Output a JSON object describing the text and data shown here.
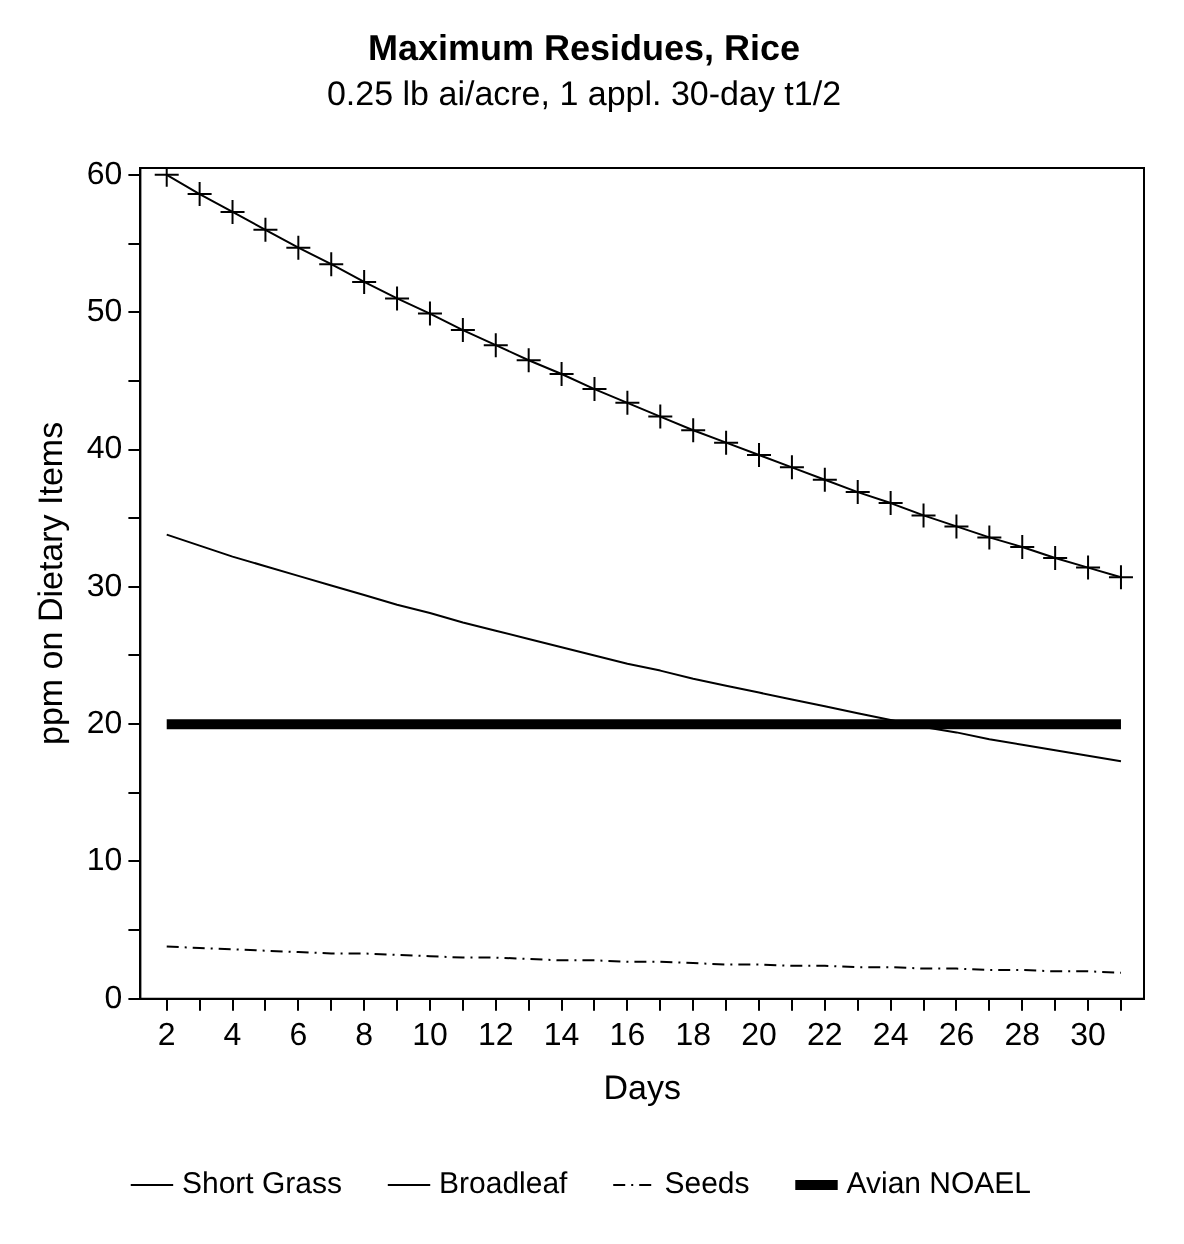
{
  "chart_data": {
    "type": "line",
    "title": "Maximum Residues, Rice",
    "subtitle": "0.25 lb ai/acre, 1 appl. 30-day t1/2",
    "xlabel": "Days",
    "ylabel": "ppm on Dietary Items",
    "x": [
      2,
      3,
      4,
      5,
      6,
      7,
      8,
      9,
      10,
      11,
      12,
      13,
      14,
      15,
      16,
      17,
      18,
      19,
      20,
      21,
      22,
      23,
      24,
      25,
      26,
      27,
      28,
      29,
      30,
      31
    ],
    "series": [
      {
        "name": "Short Grass",
        "color": "#000000",
        "marker": "cross",
        "line_style": "solid",
        "values": [
          60.0,
          58.6,
          57.3,
          56.0,
          54.7,
          53.5,
          52.2,
          51.0,
          49.9,
          48.7,
          47.6,
          46.5,
          45.5,
          44.4,
          43.4,
          42.4,
          41.4,
          40.5,
          39.6,
          38.7,
          37.8,
          36.9,
          36.1,
          35.2,
          34.4,
          33.6,
          32.9,
          32.1,
          31.4,
          30.7
        ]
      },
      {
        "name": "Broadleaf",
        "color": "#000000",
        "marker": "none",
        "line_style": "solid",
        "values": [
          33.8,
          33.0,
          32.2,
          31.5,
          30.8,
          30.1,
          29.4,
          28.7,
          28.1,
          27.4,
          26.8,
          26.2,
          25.6,
          25.0,
          24.4,
          23.9,
          23.3,
          22.8,
          22.3,
          21.8,
          21.3,
          20.8,
          20.3,
          19.8,
          19.4,
          18.9,
          18.5,
          18.1,
          17.7,
          17.3
        ]
      },
      {
        "name": "Seeds",
        "color": "#000000",
        "marker": "none",
        "line_style": "dashed",
        "values": [
          3.8,
          3.7,
          3.6,
          3.5,
          3.4,
          3.3,
          3.3,
          3.2,
          3.1,
          3.0,
          3.0,
          2.9,
          2.8,
          2.8,
          2.7,
          2.7,
          2.6,
          2.5,
          2.5,
          2.4,
          2.4,
          2.3,
          2.3,
          2.2,
          2.2,
          2.1,
          2.1,
          2.0,
          2.0,
          1.9
        ]
      },
      {
        "name": "Avian NOAEL",
        "color": "#000000",
        "marker": "none",
        "line_style": "solid",
        "values": [
          20,
          20,
          20,
          20,
          20,
          20,
          20,
          20,
          20,
          20,
          20,
          20,
          20,
          20,
          20,
          20,
          20,
          20,
          20,
          20,
          20,
          20,
          20,
          20,
          20,
          20,
          20,
          20,
          20,
          20
        ]
      }
    ],
    "xlim": [
      1.2,
      31.7
    ],
    "xticks": [
      2,
      {
        "value": 3,
        "label": null
      },
      4,
      {
        "value": 5,
        "label": null
      },
      6,
      {
        "value": 7,
        "label": null
      },
      8,
      {
        "value": 9,
        "label": null
      },
      10,
      {
        "value": 11,
        "label": null
      },
      12,
      {
        "value": 13,
        "label": null
      },
      14,
      {
        "value": 15,
        "label": null
      },
      16,
      {
        "value": 17,
        "label": null
      },
      18,
      {
        "value": 19,
        "label": null
      },
      20,
      {
        "value": 21,
        "label": null
      },
      22,
      {
        "value": 23,
        "label": null
      },
      24,
      {
        "value": 25,
        "label": null
      },
      26,
      {
        "value": 27,
        "label": null
      },
      28,
      {
        "value": 29,
        "label": null
      },
      30,
      {
        "value": 31,
        "label": null
      }
    ],
    "ylim": [
      0,
      60.5
    ],
    "yticks": [
      0,
      {
        "value": 5,
        "label": null
      },
      10,
      {
        "value": 15,
        "label": null
      },
      20,
      {
        "value": 25,
        "label": null
      },
      30,
      {
        "value": 35,
        "label": null
      },
      40,
      {
        "value": 45,
        "label": null
      },
      50,
      {
        "value": 55,
        "label": null
      },
      60
    ],
    "grid": false,
    "legend": "bottom"
  }
}
